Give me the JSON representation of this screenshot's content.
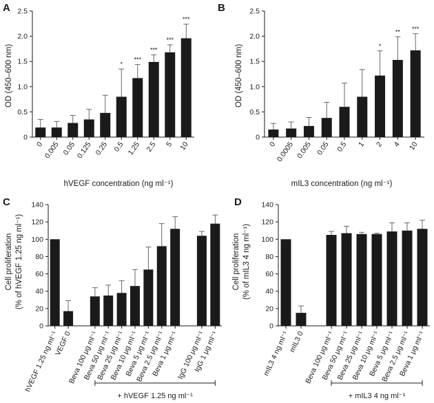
{
  "chart_data": [
    {
      "id": "A",
      "type": "bar",
      "panel_label": "A",
      "ylabel": "OD (450–600 nm)",
      "xlabel": "hVEGF concentration (ng ml⁻¹)",
      "ylim": [
        0,
        2.5
      ],
      "yticks": [
        "0",
        "0.5",
        "1.0",
        "1.5",
        "2.0",
        "2.5"
      ],
      "ytick_values": [
        0,
        0.5,
        1.0,
        1.5,
        2.0,
        2.5
      ],
      "categories": [
        "0",
        "0.005",
        "0.05",
        "0.125",
        "0.25",
        "0.5",
        "1.25",
        "2.5",
        "5",
        "10"
      ],
      "values": [
        0.19,
        0.19,
        0.28,
        0.35,
        0.48,
        0.8,
        1.17,
        1.49,
        1.68,
        1.96
      ],
      "errors": [
        0.16,
        0.12,
        0.15,
        0.2,
        0.35,
        0.55,
        0.27,
        0.14,
        0.15,
        0.28
      ],
      "significance": [
        "",
        "",
        "",
        "",
        "",
        "*",
        "***",
        "***",
        "***",
        "***"
      ],
      "bracket": null
    },
    {
      "id": "B",
      "type": "bar",
      "panel_label": "B",
      "ylabel": "OD (450–600 nm)",
      "xlabel": "mIL3 concentration (ng ml⁻¹)",
      "ylim": [
        0,
        2.5
      ],
      "yticks": [
        "0",
        "0.5",
        "1.0",
        "1.5",
        "2.0",
        "2.5"
      ],
      "ytick_values": [
        0,
        0.5,
        1.0,
        1.5,
        2.0,
        2.5
      ],
      "categories": [
        "0",
        "0.0005",
        "0.005",
        "0.05",
        "0.5",
        "1",
        "2",
        "4",
        "10"
      ],
      "values": [
        0.15,
        0.17,
        0.22,
        0.38,
        0.6,
        0.8,
        1.22,
        1.53,
        1.72
      ],
      "errors": [
        0.12,
        0.13,
        0.17,
        0.31,
        0.47,
        0.54,
        0.49,
        0.46,
        0.33
      ],
      "significance": [
        "",
        "",
        "",
        "",
        "",
        "",
        "*",
        "**",
        "***"
      ],
      "bracket": null
    },
    {
      "id": "C",
      "type": "bar",
      "panel_label": "C",
      "ylabel_line1": "Cell proliferation",
      "ylabel_line2": "(% of hVEGF 1.25 ng ml⁻¹)",
      "ylim": [
        0,
        140
      ],
      "yticks": [
        "0",
        "20",
        "40",
        "60",
        "80",
        "100",
        "120",
        "140"
      ],
      "ytick_values": [
        0,
        20,
        40,
        60,
        80,
        100,
        120,
        140
      ],
      "categories": [
        "hVEGF 1.25 ng ml⁻¹",
        "VEGF 0",
        "Beva 100 μg ml⁻¹",
        "Beva 50 μg ml⁻¹",
        "Beva 25 μg ml⁻¹",
        "Beva 10 μg ml⁻¹",
        "Beva 5 μg ml⁻¹",
        "Beva 2.5 μg ml⁻¹",
        "Beva 1 μg ml⁻¹",
        "IgG 100 μg ml⁻¹",
        "IgG 1 μg ml⁻¹"
      ],
      "slots": [
        0,
        1,
        3,
        4,
        5,
        6,
        7,
        8,
        9,
        11,
        12
      ],
      "values": [
        100,
        17,
        34,
        35,
        38,
        46,
        65,
        92,
        112,
        104,
        118
      ],
      "errors": [
        0,
        12,
        10,
        12,
        14,
        19,
        26,
        26,
        14,
        5,
        10
      ],
      "significance": [
        "",
        "",
        "",
        "",
        "",
        "",
        "",
        "",
        "",
        "",
        ""
      ],
      "bracket": {
        "label": "+ hVEGF 1.25 ng ml⁻¹",
        "from": 2,
        "to": 10
      }
    },
    {
      "id": "D",
      "type": "bar",
      "panel_label": "D",
      "ylabel_line1": "Cell proliferation",
      "ylabel_line2": "(% of mIL3 4 ng ml⁻¹)",
      "ylim": [
        0,
        140
      ],
      "yticks": [
        "0",
        "20",
        "40",
        "60",
        "80",
        "100",
        "120",
        "140"
      ],
      "ytick_values": [
        0,
        20,
        40,
        60,
        80,
        100,
        120,
        140
      ],
      "categories": [
        "mIL3 4  ng ml⁻¹",
        "mIL3 0",
        "Beva 100 μg ml⁻¹",
        "Beva 50 μg ml⁻¹",
        "Beva 25 μg ml⁻¹",
        "Beva 10 μg ml⁻¹",
        "Beva 5 μg ml⁻¹",
        "Beva 2.5 μg ml⁻¹",
        "Beva 1 μg ml⁻¹"
      ],
      "slots": [
        0,
        1,
        3,
        4,
        5,
        6,
        7,
        8,
        9
      ],
      "values": [
        100,
        15,
        105,
        107,
        106,
        106,
        109,
        110,
        112
      ],
      "errors": [
        0,
        8,
        4,
        8,
        2,
        1,
        10,
        9,
        10
      ],
      "significance": [
        "",
        "",
        "",
        "",
        "",
        "",
        "",
        "",
        ""
      ],
      "bracket": {
        "label": "+ mIL3 4 ng ml⁻¹",
        "from": 2,
        "to": 8
      }
    }
  ]
}
